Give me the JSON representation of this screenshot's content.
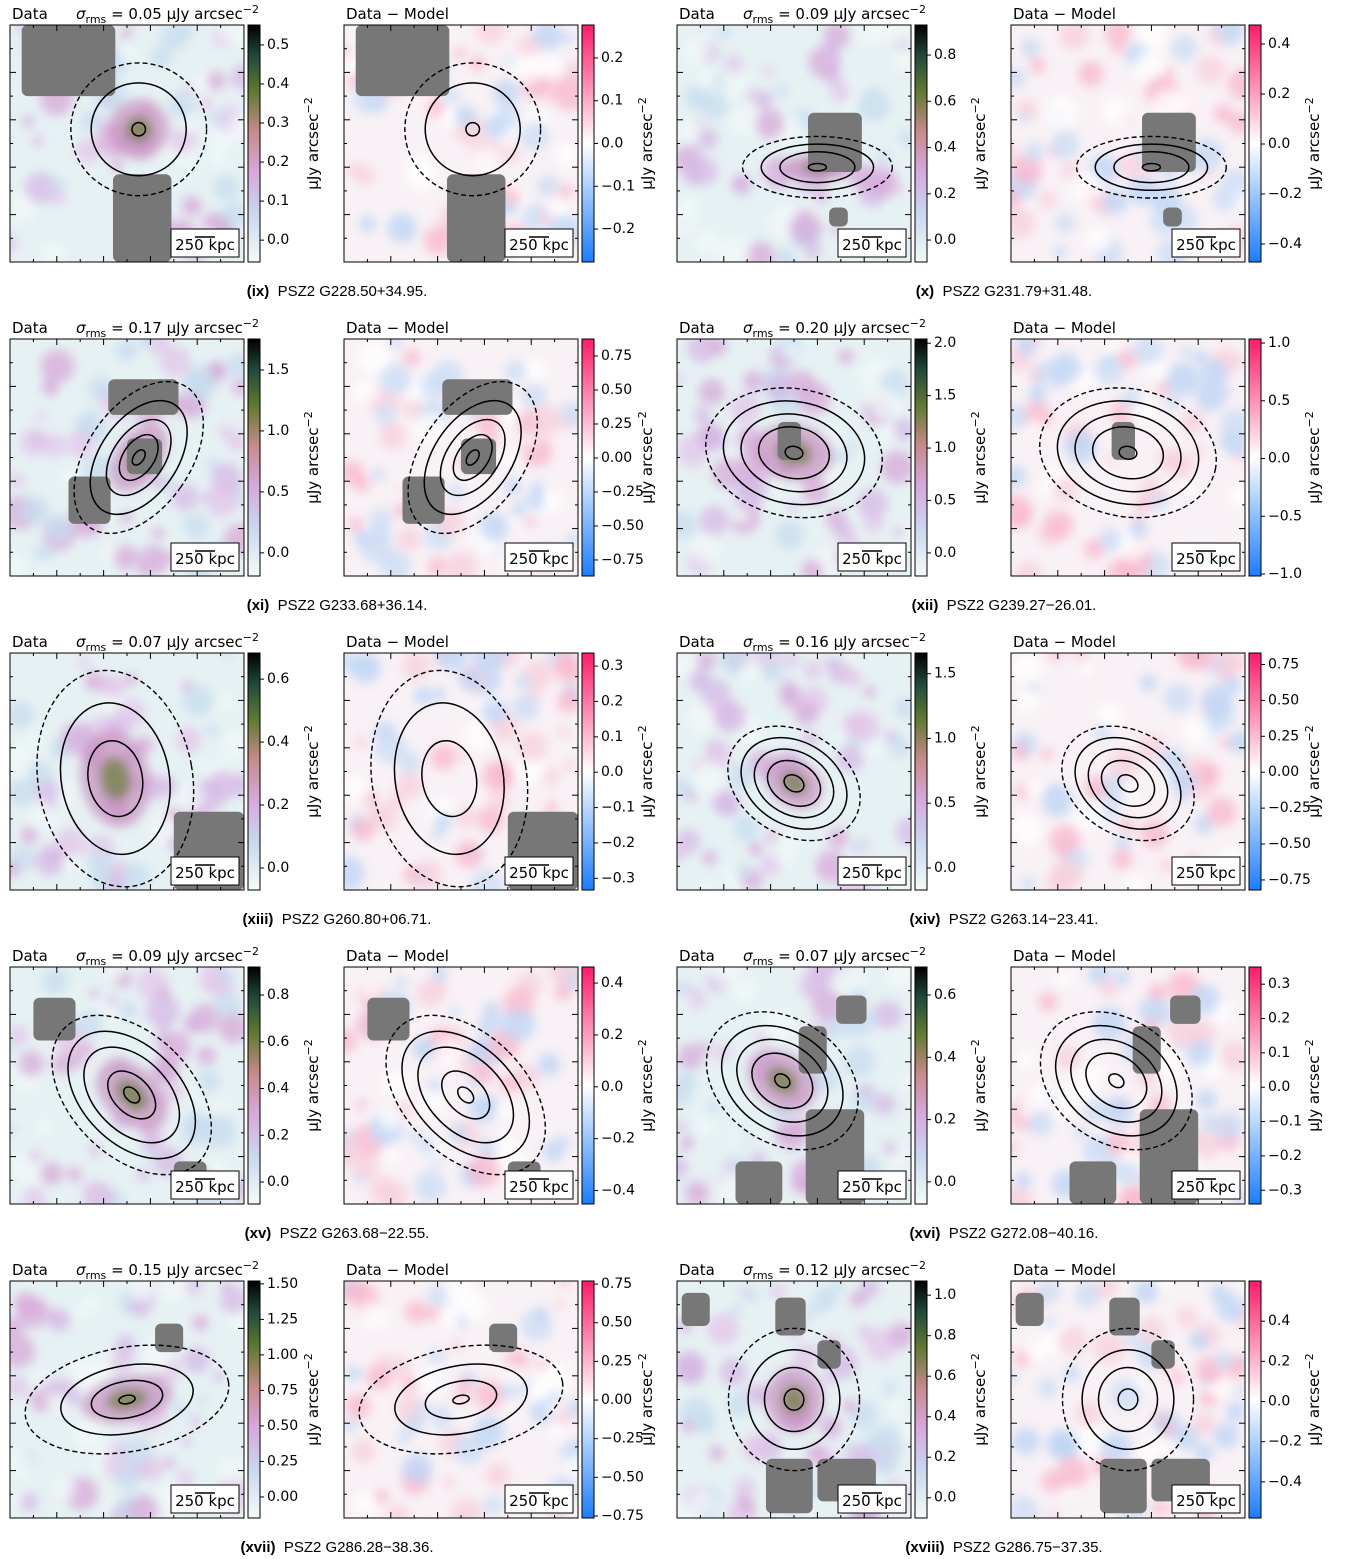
{
  "figures": [
    {
      "label": "(ix)",
      "name": "PSZ2 G228.50+34.95.",
      "data_panel": {
        "title": "Data",
        "sigma": "σ",
        "sigma_sub": "rms",
        "sigma_text": " = 0.05 μJy arcsec",
        "sigma_exp": "−2",
        "scale_bar": "250 kpc",
        "colorbar": {
          "label": "μJy arcsec",
          "label_exp": "−2",
          "lim": [
            -0.056,
            0.551
          ],
          "ticks": [
            {
              "value": 0,
              "label": "0.0"
            },
            0.1,
            0.2,
            0.3,
            0.4,
            0.5
          ]
        }
      },
      "model_panel": {
        "title": "Data − Model",
        "scale_bar": "250 kpc",
        "colorbar": {
          "label": "μJy arcsec",
          "label_exp": "−2",
          "lim": [
            -0.277,
            0.277
          ],
          "ticks": [
            {
              "value": -0.2,
              "label": "−0.2"
            },
            {
              "value": -0.1,
              "label": "−0.1"
            },
            {
              "value": 0,
              "label": "0.0"
            },
            0.1,
            0.2
          ]
        }
      }
    },
    {
      "label": "(x)",
      "name": "PSZ2 G231.79+31.48.",
      "data_panel": {
        "title": "Data",
        "sigma": "σ",
        "sigma_sub": "rms",
        "sigma_text": " = 0.09 μJy arcsec",
        "sigma_exp": "−2",
        "scale_bar": "250 kpc",
        "colorbar": {
          "label": "μJy arcsec",
          "label_exp": "−2",
          "lim": [
            -0.095,
            0.93
          ],
          "ticks": [
            {
              "value": 0,
              "label": "0.0"
            },
            0.2,
            0.4,
            0.6,
            0.8
          ]
        }
      },
      "model_panel": {
        "title": "Data − Model",
        "scale_bar": "250 kpc",
        "colorbar": {
          "label": "μJy arcsec",
          "label_exp": "−2",
          "lim": [
            -0.472,
            0.476
          ],
          "ticks": [
            {
              "value": -0.4,
              "label": "−0.4"
            },
            {
              "value": -0.2,
              "label": "−0.2"
            },
            {
              "value": 0,
              "label": "0.0"
            },
            0.2,
            0.4
          ]
        }
      }
    },
    {
      "label": "(xi)",
      "name": "PSZ2 G233.68+36.14.",
      "data_panel": {
        "title": "Data",
        "sigma": "σ",
        "sigma_sub": "rms",
        "sigma_text": " = 0.17 μJy arcsec",
        "sigma_exp": "−2",
        "scale_bar": "250 kpc",
        "colorbar": {
          "label": "μJy arcsec",
          "label_exp": "−2",
          "lim": [
            -0.19,
            1.754
          ],
          "ticks": [
            {
              "value": 0,
              "label": "0.0"
            },
            0.5,
            {
              "value": 1,
              "label": "1.0"
            },
            1.5
          ]
        }
      },
      "model_panel": {
        "title": "Data − Model",
        "scale_bar": "250 kpc",
        "colorbar": {
          "label": "μJy arcsec",
          "label_exp": "−2",
          "lim": [
            -0.868,
            0.875
          ],
          "ticks": [
            {
              "value": -0.75,
              "label": "−0.75"
            },
            {
              "value": -0.5,
              "label": "−0.50"
            },
            {
              "value": -0.25,
              "label": "−0.25"
            },
            {
              "value": 0,
              "label": "0.00"
            },
            0.25,
            {
              "value": 0.5,
              "label": "0.50"
            },
            0.75
          ]
        }
      }
    },
    {
      "label": "(xii)",
      "name": "PSZ2 G239.27−26.01.",
      "data_panel": {
        "title": "Data",
        "sigma": "σ",
        "sigma_sub": "rms",
        "sigma_text": " = 0.20 μJy arcsec",
        "sigma_exp": "−2",
        "scale_bar": "250 kpc",
        "colorbar": {
          "label": "μJy arcsec",
          "label_exp": "−2",
          "lim": [
            -0.22,
            2.04
          ],
          "ticks": [
            {
              "value": 0,
              "label": "0.0"
            },
            0.5,
            {
              "value": 1,
              "label": "1.0"
            },
            1.5,
            {
              "value": 2,
              "label": "2.0"
            }
          ]
        }
      },
      "model_panel": {
        "title": "Data − Model",
        "scale_bar": "250 kpc",
        "colorbar": {
          "label": "μJy arcsec",
          "label_exp": "−2",
          "lim": [
            -1.017,
            1.035
          ],
          "ticks": [
            {
              "value": -1,
              "label": "−1.0"
            },
            {
              "value": -0.5,
              "label": "−0.5"
            },
            {
              "value": 0,
              "label": "0.0"
            },
            0.5,
            {
              "value": 1,
              "label": "1.0"
            }
          ]
        }
      }
    },
    {
      "label": "(xiii)",
      "name": "PSZ2 G260.80+06.71.",
      "data_panel": {
        "title": "Data",
        "sigma": "σ",
        "sigma_sub": "rms",
        "sigma_text": " = 0.07 μJy arcsec",
        "sigma_exp": "−2",
        "scale_bar": "250 kpc",
        "colorbar": {
          "label": "μJy arcsec",
          "label_exp": "−2",
          "lim": [
            -0.07,
            0.683
          ],
          "ticks": [
            {
              "value": 0,
              "label": "0.0"
            },
            0.2,
            0.4,
            0.6
          ]
        }
      },
      "model_panel": {
        "title": "Data − Model",
        "scale_bar": "250 kpc",
        "colorbar": {
          "label": "μJy arcsec",
          "label_exp": "−2",
          "lim": [
            -0.333,
            0.337
          ],
          "ticks": [
            {
              "value": -0.3,
              "label": "−0.3"
            },
            {
              "value": -0.2,
              "label": "−0.2"
            },
            {
              "value": -0.1,
              "label": "−0.1"
            },
            {
              "value": 0,
              "label": "0.0"
            },
            0.1,
            0.2,
            0.3
          ]
        }
      }
    },
    {
      "label": "(xiv)",
      "name": "PSZ2 G263.14−23.41.",
      "data_panel": {
        "title": "Data",
        "sigma": "σ",
        "sigma_sub": "rms",
        "sigma_text": " = 0.16 μJy arcsec",
        "sigma_exp": "−2",
        "scale_bar": "250 kpc",
        "colorbar": {
          "label": "μJy arcsec",
          "label_exp": "−2",
          "lim": [
            -0.17,
            1.66
          ],
          "ticks": [
            {
              "value": 0,
              "label": "0.0"
            },
            0.5,
            {
              "value": 1,
              "label": "1.0"
            },
            1.5
          ]
        }
      },
      "model_panel": {
        "title": "Data − Model",
        "scale_bar": "250 kpc",
        "colorbar": {
          "label": "μJy arcsec",
          "label_exp": "−2",
          "lim": [
            -0.82,
            0.83
          ],
          "ticks": [
            {
              "value": -0.75,
              "label": "−0.75"
            },
            {
              "value": -0.5,
              "label": "−0.50"
            },
            {
              "value": -0.25,
              "label": "−0.25"
            },
            {
              "value": 0,
              "label": "0.00"
            },
            0.25,
            {
              "value": 0.5,
              "label": "0.50"
            },
            0.75
          ]
        }
      }
    },
    {
      "label": "(xv)",
      "name": "PSZ2 G263.68−22.55.",
      "data_panel": {
        "title": "Data",
        "sigma": "σ",
        "sigma_sub": "rms",
        "sigma_text": " = 0.09 μJy arcsec",
        "sigma_exp": "−2",
        "scale_bar": "250 kpc",
        "colorbar": {
          "label": "μJy arcsec",
          "label_exp": "−2",
          "lim": [
            -0.094,
            0.92
          ],
          "ticks": [
            {
              "value": 0,
              "label": "0.0"
            },
            0.2,
            0.4,
            0.6,
            0.8
          ]
        }
      },
      "model_panel": {
        "title": "Data − Model",
        "scale_bar": "250 kpc",
        "colorbar": {
          "label": "μJy arcsec",
          "label_exp": "−2",
          "lim": [
            -0.452,
            0.462
          ],
          "ticks": [
            {
              "value": -0.4,
              "label": "−0.4"
            },
            {
              "value": -0.2,
              "label": "−0.2"
            },
            {
              "value": 0,
              "label": "0.0"
            },
            0.2,
            0.4
          ]
        }
      }
    },
    {
      "label": "(xvi)",
      "name": "PSZ2 G272.08−40.16.",
      "data_panel": {
        "title": "Data",
        "sigma": "σ",
        "sigma_sub": "rms",
        "sigma_text": " = 0.07 μJy arcsec",
        "sigma_exp": "−2",
        "scale_bar": "250 kpc",
        "colorbar": {
          "label": "μJy arcsec",
          "label_exp": "−2",
          "lim": [
            -0.071,
            0.69
          ],
          "ticks": [
            {
              "value": 0,
              "label": "0.0"
            },
            0.2,
            0.4,
            0.6
          ]
        }
      },
      "model_panel": {
        "title": "Data − Model",
        "scale_bar": "250 kpc",
        "colorbar": {
          "label": "μJy arcsec",
          "label_exp": "−2",
          "lim": [
            -0.34,
            0.35
          ],
          "ticks": [
            {
              "value": -0.3,
              "label": "−0.3"
            },
            {
              "value": -0.2,
              "label": "−0.2"
            },
            {
              "value": -0.1,
              "label": "−0.1"
            },
            {
              "value": 0,
              "label": "0.0"
            },
            0.1,
            0.2,
            0.3
          ]
        }
      }
    },
    {
      "label": "(xvii)",
      "name": "PSZ2 G286.28−38.36.",
      "data_panel": {
        "title": "Data",
        "sigma": "σ",
        "sigma_sub": "rms",
        "sigma_text": " = 0.15 μJy arcsec",
        "sigma_exp": "−2",
        "scale_bar": "250 kpc",
        "colorbar": {
          "label": "μJy arcsec",
          "label_exp": "−2",
          "lim": [
            -0.148,
            1.52
          ],
          "ticks": [
            {
              "value": 0,
              "label": "0.00"
            },
            0.25,
            {
              "value": 0.5,
              "label": "0.50"
            },
            0.75,
            {
              "value": 1,
              "label": "1.00"
            },
            1.25,
            {
              "value": 1.5,
              "label": "1.50"
            }
          ]
        }
      },
      "model_panel": {
        "title": "Data − Model",
        "scale_bar": "250 kpc",
        "colorbar": {
          "label": "μJy arcsec",
          "label_exp": "−2",
          "lim": [
            -0.763,
            0.77
          ],
          "ticks": [
            {
              "value": -0.75,
              "label": "−0.75"
            },
            {
              "value": -0.5,
              "label": "−0.50"
            },
            {
              "value": -0.25,
              "label": "−0.25"
            },
            {
              "value": 0,
              "label": "0.00"
            },
            0.25,
            {
              "value": 0.5,
              "label": "0.50"
            },
            0.75
          ]
        }
      }
    },
    {
      "label": "(xviii)",
      "name": "PSZ2 G286.75−37.35.",
      "data_panel": {
        "title": "Data",
        "sigma": "σ",
        "sigma_sub": "rms",
        "sigma_text": " = 0.12 μJy arcsec",
        "sigma_exp": "−2",
        "scale_bar": "250 kpc",
        "colorbar": {
          "label": "μJy arcsec",
          "label_exp": "−2",
          "lim": [
            -0.1,
            1.07
          ],
          "ticks": [
            {
              "value": 0,
              "label": "0.0"
            },
            0.2,
            0.4,
            0.6,
            0.8,
            {
              "value": 1,
              "label": "1.0"
            }
          ]
        }
      },
      "model_panel": {
        "title": "Data − Model",
        "scale_bar": "250 kpc",
        "colorbar": {
          "label": "μJy arcsec",
          "label_exp": "−2",
          "lim": [
            -0.58,
            0.6
          ],
          "ticks": [
            {
              "value": -0.4,
              "label": "−0.4"
            },
            {
              "value": -0.2,
              "label": "−0.2"
            },
            {
              "value": 0,
              "label": "0.0"
            },
            0.2,
            0.4
          ]
        }
      }
    }
  ]
}
